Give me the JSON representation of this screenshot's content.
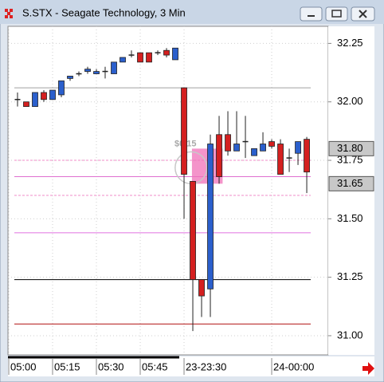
{
  "chart_data": {
    "type": "candlestick",
    "title": "S.STX - Seagate Technology, 3 Min",
    "open": [
      32.01,
      32.0,
      31.98,
      32.04,
      32.01,
      32.03,
      32.1,
      32.12,
      32.13,
      32.12,
      32.13,
      32.12,
      32.17,
      32.2,
      32.21,
      32.21,
      32.21,
      32.22,
      32.18,
      32.06,
      31.66,
      31.24,
      31.2,
      31.86,
      31.86,
      31.79,
      31.83,
      31.77,
      31.79,
      31.83,
      31.82,
      31.76,
      31.78,
      31.84
    ],
    "high": [
      32.04,
      32.0,
      32.04,
      32.05,
      32.05,
      32.09,
      32.11,
      32.13,
      32.15,
      32.14,
      32.15,
      32.17,
      32.19,
      32.22,
      32.21,
      32.21,
      32.22,
      32.23,
      32.23,
      32.06,
      31.66,
      31.24,
      31.86,
      31.94,
      31.96,
      31.96,
      31.94,
      31.8,
      31.87,
      31.84,
      31.84,
      31.8,
      31.83,
      31.85
    ],
    "low": [
      31.98,
      31.98,
      31.98,
      32.0,
      32.01,
      32.02,
      32.09,
      32.11,
      32.12,
      32.12,
      32.1,
      32.12,
      32.17,
      32.19,
      32.17,
      32.17,
      32.2,
      32.19,
      32.18,
      31.5,
      31.02,
      31.08,
      31.08,
      31.65,
      31.77,
      31.79,
      31.76,
      31.77,
      31.79,
      31.8,
      31.69,
      31.7,
      31.73,
      31.61
    ],
    "close": [
      32.01,
      31.98,
      32.04,
      32.01,
      32.05,
      32.09,
      32.11,
      32.12,
      32.14,
      32.13,
      32.13,
      32.17,
      32.19,
      32.2,
      32.17,
      32.17,
      32.21,
      32.2,
      32.23,
      31.69,
      31.24,
      31.17,
      31.82,
      31.68,
      31.79,
      31.82,
      31.83,
      31.8,
      31.82,
      31.81,
      31.69,
      31.76,
      31.83,
      31.7
    ],
    "up_color": "#2b5fcc",
    "down_color": "#d42020",
    "xlim": [
      -1.09,
      35.45
    ],
    "xticks": [
      {
        "value": -1,
        "label": "05:00"
      },
      {
        "value": 4,
        "label": "05:15"
      },
      {
        "value": 9,
        "label": "05:30"
      },
      {
        "value": 14,
        "label": "05:45"
      },
      {
        "value": 19,
        "label": "23-23:30"
      },
      {
        "value": 29,
        "label": "24-00:00"
      }
    ],
    "ylim": [
      30.918,
      32.323
    ],
    "yticks": [
      32.25,
      {
        "value": 32,
        "label": "32.00"
      },
      31.75,
      {
        "value": 31.5,
        "label": "31.50"
      },
      31.25,
      {
        "value": 31,
        "label": "31.00"
      }
    ],
    "grid": true,
    "levels": [
      {
        "value": 32.06,
        "color": "#a0a0a0",
        "dashed": false
      },
      {
        "value": 31.75,
        "color": "#f08cc8",
        "dashed": true
      },
      {
        "value": 31.68,
        "color": "#e070d0",
        "dashed": false
      },
      {
        "value": 31.6,
        "color": "#f08cc8",
        "dashed": true
      },
      {
        "value": 31.44,
        "color": "#e070e0",
        "dashed": false
      },
      {
        "value": 31.24,
        "color": "#000000",
        "dashed": false
      },
      {
        "value": 31.05,
        "color": "#b01010",
        "dashed": false
      }
    ],
    "price_labels": [
      {
        "value": 31.8,
        "label": "31.80"
      },
      {
        "value": 31.65,
        "label": "31.65"
      }
    ],
    "annotation": "$0.15"
  }
}
